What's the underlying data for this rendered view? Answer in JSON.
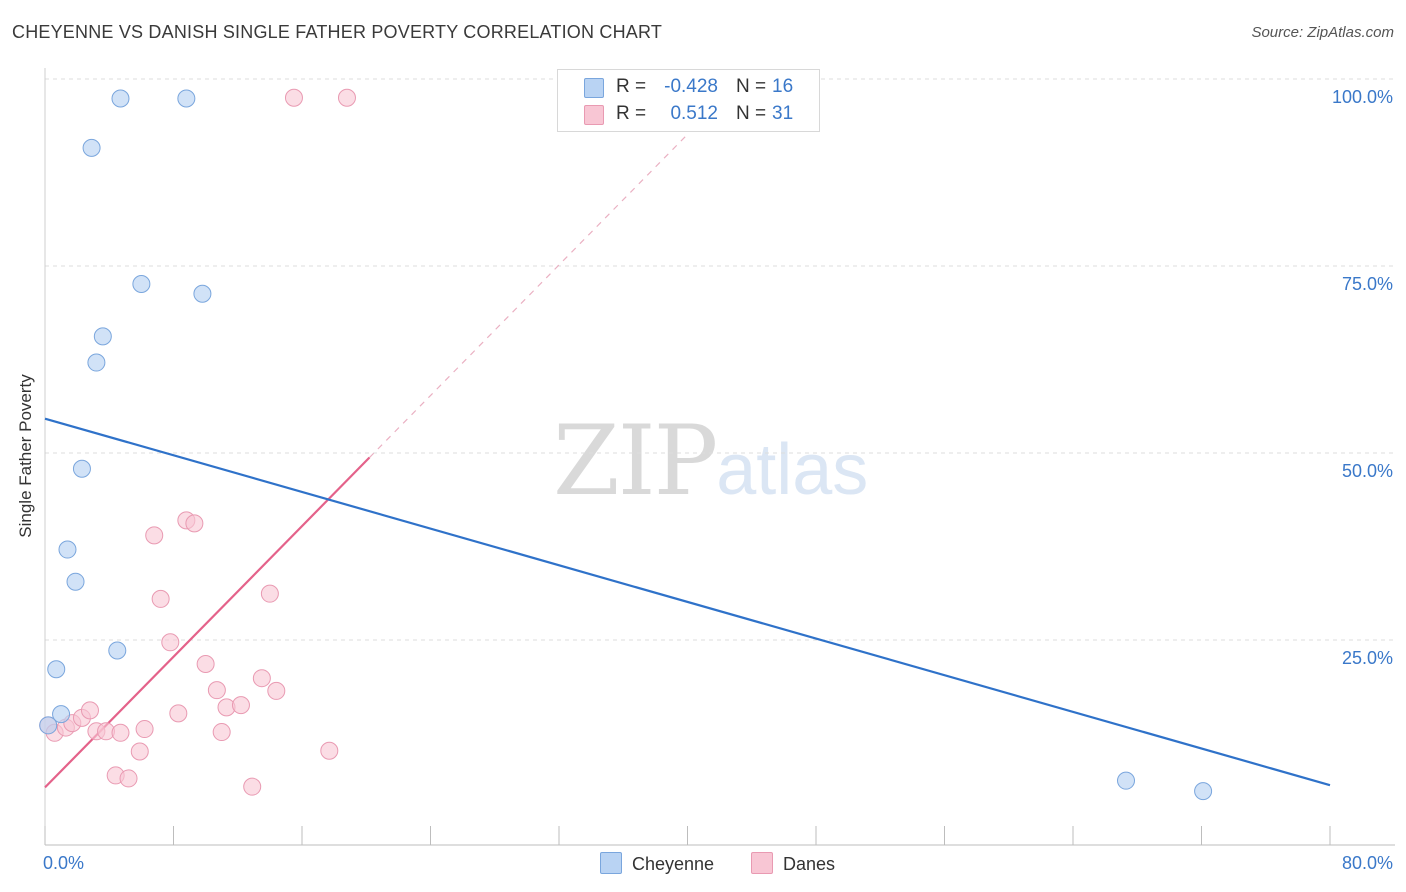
{
  "header": {
    "title": "CHEYENNE VS DANISH SINGLE FATHER POVERTY CORRELATION CHART",
    "source": "Source: ZipAtlas.com"
  },
  "watermark": {
    "zip": "ZIP",
    "atlas": "atlas"
  },
  "legend": {
    "rows": [
      {
        "r_label": "R =",
        "r_value": "-0.428",
        "n_label": "N =",
        "n_value": "16"
      },
      {
        "r_label": "R =",
        "r_value": "0.512",
        "n_label": "N =",
        "n_value": "31"
      }
    ],
    "bottom": [
      "Cheyenne",
      "Danes"
    ]
  },
  "colors": {
    "cheyenne_fill": "#b9d3f3",
    "cheyenne_stroke": "#7aa6dd",
    "cheyenne_line": "#2f72c9",
    "danes_fill": "#f8c6d4",
    "danes_stroke": "#e99ab2",
    "danes_line": "#e4628a",
    "tick_label": "#3a78c9",
    "grid": "#dddddd"
  },
  "chart_data": {
    "type": "scatter",
    "title": "CHEYENNE VS DANISH SINGLE FATHER POVERTY CORRELATION CHART",
    "xlabel": "",
    "ylabel": "Single Father Poverty",
    "xlim": [
      0,
      80
    ],
    "ylim": [
      0,
      100
    ],
    "x_tick_labels": [
      "0.0%",
      "80.0%"
    ],
    "y_ticks": [
      25,
      50,
      75,
      100
    ],
    "y_tick_labels": [
      "25.0%",
      "50.0%",
      "75.0%",
      "100.0%"
    ],
    "grid": true,
    "legend_position": "top-center",
    "series": [
      {
        "name": "Cheyenne",
        "points": [
          [
            0.2,
            16.0
          ],
          [
            1.0,
            17.5
          ],
          [
            0.7,
            23.5
          ],
          [
            1.4,
            39.5
          ],
          [
            1.9,
            35.2
          ],
          [
            2.3,
            50.3
          ],
          [
            3.2,
            64.5
          ],
          [
            3.6,
            68.0
          ],
          [
            2.9,
            93.2
          ],
          [
            4.7,
            99.8
          ],
          [
            8.8,
            99.8
          ],
          [
            6.0,
            75.0
          ],
          [
            9.8,
            73.7
          ],
          [
            4.5,
            26.0
          ],
          [
            67.3,
            8.6
          ],
          [
            72.1,
            7.2
          ]
        ],
        "trend": {
          "x": [
            0,
            80
          ],
          "y": [
            57.0,
            8.0
          ]
        }
      },
      {
        "name": "Danes",
        "points": [
          [
            0.2,
            16.0
          ],
          [
            0.6,
            15.0
          ],
          [
            1.3,
            15.7
          ],
          [
            1.7,
            16.3
          ],
          [
            2.3,
            17.0
          ],
          [
            2.8,
            18.0
          ],
          [
            3.2,
            15.2
          ],
          [
            3.8,
            15.2
          ],
          [
            4.4,
            9.3
          ],
          [
            4.7,
            15.0
          ],
          [
            5.2,
            8.9
          ],
          [
            5.9,
            12.5
          ],
          [
            6.2,
            15.5
          ],
          [
            6.8,
            41.4
          ],
          [
            7.2,
            32.9
          ],
          [
            7.8,
            27.1
          ],
          [
            8.3,
            17.6
          ],
          [
            8.8,
            43.4
          ],
          [
            9.3,
            43.0
          ],
          [
            10.0,
            24.2
          ],
          [
            10.7,
            20.7
          ],
          [
            11.0,
            15.1
          ],
          [
            11.3,
            18.4
          ],
          [
            12.2,
            18.7
          ],
          [
            12.9,
            7.8
          ],
          [
            13.5,
            22.3
          ],
          [
            14.0,
            33.6
          ],
          [
            14.4,
            20.6
          ],
          [
            17.7,
            12.6
          ],
          [
            15.5,
            99.9
          ],
          [
            18.8,
            99.9
          ]
        ],
        "trend": {
          "x": [
            0,
            20.2
          ],
          "y": [
            7.7,
            51.8
          ],
          "dashed_to": [
            40.0,
            95.0
          ]
        }
      }
    ]
  }
}
